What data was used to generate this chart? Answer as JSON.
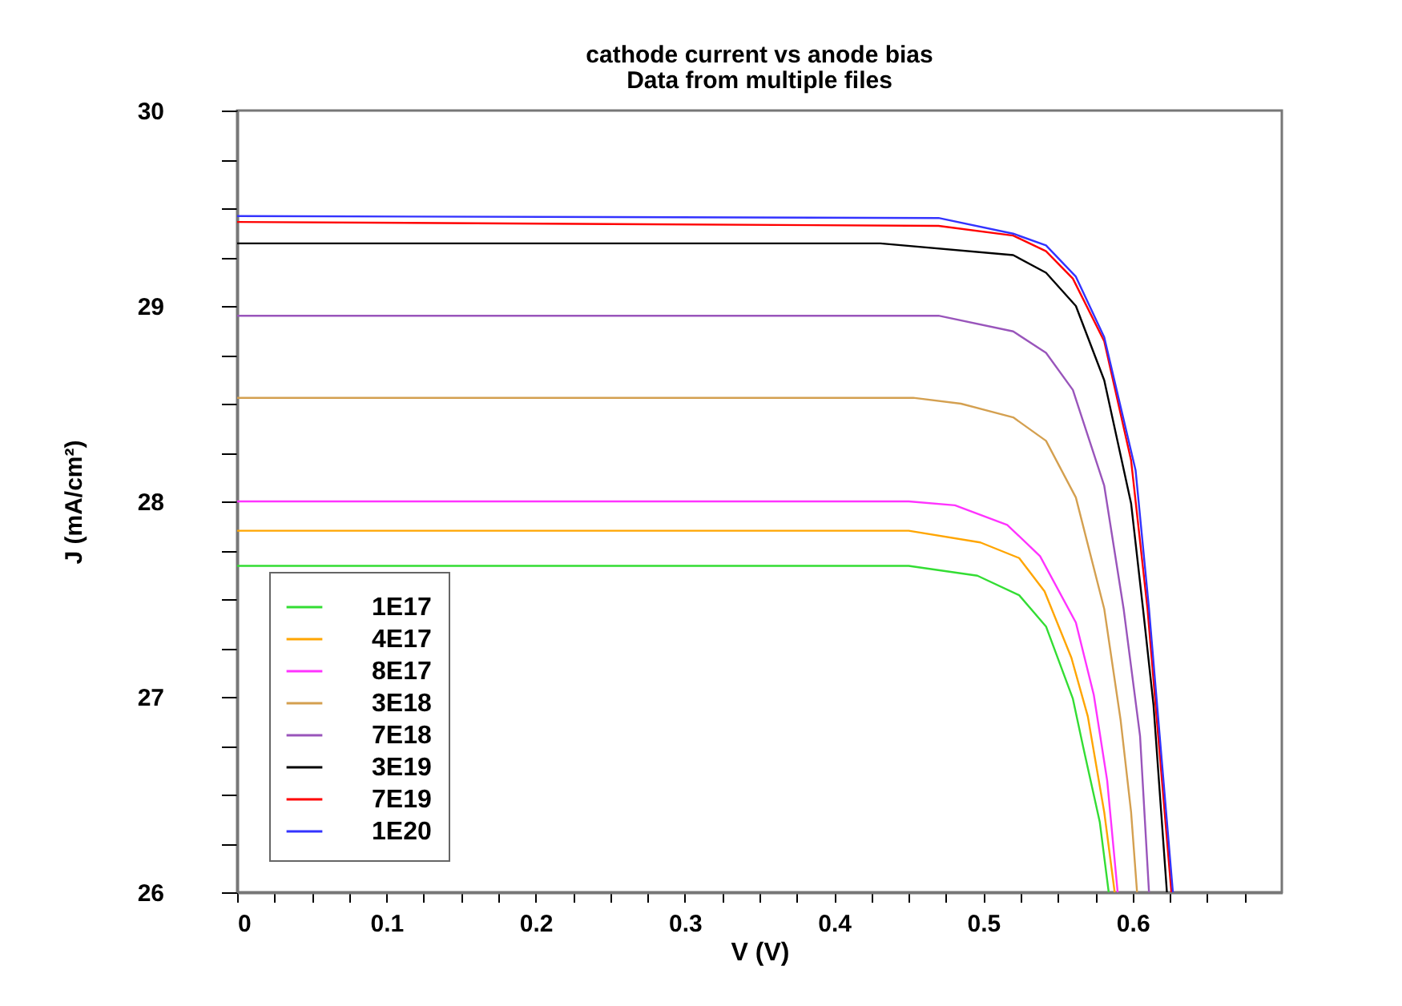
{
  "chart_data": {
    "type": "line",
    "title": "cathode current vs anode bias",
    "subtitle": "Data from multiple files",
    "xlabel": "V (V)",
    "ylabel": "J (mA/cm²)",
    "xlim": [
      0,
      0.7
    ],
    "ylim": [
      26,
      30
    ],
    "xticks": [
      0,
      {
        "value": 0.025,
        "label": null
      },
      {
        "value": 0.05,
        "label": null
      },
      {
        "value": 0.075,
        "label": null
      },
      0.1,
      {
        "value": 0.125,
        "label": null
      },
      {
        "value": 0.15,
        "label": null
      },
      {
        "value": 0.175,
        "label": null
      },
      0.2,
      {
        "value": 0.225,
        "label": null
      },
      {
        "value": 0.25,
        "label": null
      },
      {
        "value": 0.275,
        "label": null
      },
      0.3,
      {
        "value": 0.325,
        "label": null
      },
      {
        "value": 0.35,
        "label": null
      },
      {
        "value": 0.375,
        "label": null
      },
      0.4,
      {
        "value": 0.425,
        "label": null
      },
      {
        "value": 0.45,
        "label": null
      },
      {
        "value": 0.475,
        "label": null
      },
      0.5,
      {
        "value": 0.525,
        "label": null
      },
      {
        "value": 0.55,
        "label": null
      },
      {
        "value": 0.575,
        "label": null
      },
      0.6,
      {
        "value": 0.625,
        "label": null
      },
      {
        "value": 0.65,
        "label": null
      },
      {
        "value": 0.675,
        "label": null
      }
    ],
    "yticks": [
      26,
      {
        "value": 26.25,
        "label": null
      },
      {
        "value": 26.5,
        "label": null
      },
      {
        "value": 26.75,
        "label": null
      },
      27,
      {
        "value": 27.25,
        "label": null
      },
      {
        "value": 27.5,
        "label": null
      },
      {
        "value": 27.75,
        "label": null
      },
      28,
      {
        "value": 28.25,
        "label": null
      },
      {
        "value": 28.5,
        "label": null
      },
      {
        "value": 28.75,
        "label": null
      },
      29,
      {
        "value": 29.25,
        "label": null
      },
      {
        "value": 29.5,
        "label": null
      },
      {
        "value": 29.75,
        "label": null
      },
      30
    ],
    "grid": false,
    "legend": "bottom left",
    "marker": "none",
    "line_style": "solid",
    "series": [
      {
        "name": "1E17",
        "color": "#33dd33",
        "x": [
          0,
          0.45,
          0.496,
          0.524,
          0.542,
          0.56,
          0.567,
          0.578,
          0.584
        ],
        "values": [
          27.67,
          27.67,
          27.62,
          27.52,
          27.36,
          26.99,
          26.74,
          26.36,
          26.0
        ]
      },
      {
        "name": "4E17",
        "color": "#ffa500",
        "x": [
          0,
          0.45,
          0.498,
          0.524,
          0.541,
          0.559,
          0.57,
          0.581,
          0.588
        ],
        "values": [
          27.85,
          27.85,
          27.79,
          27.71,
          27.54,
          27.2,
          26.9,
          26.41,
          26.0
        ]
      },
      {
        "name": "8E17",
        "color": "#ff33ff",
        "x": [
          0,
          0.45,
          0.481,
          0.516,
          0.538,
          0.562,
          0.574,
          0.583,
          0.59
        ],
        "values": [
          28.0,
          28.0,
          27.98,
          27.88,
          27.72,
          27.38,
          27.01,
          26.57,
          26.0
        ]
      },
      {
        "name": "3E18",
        "color": "#d4a050",
        "x": [
          0,
          0.453,
          0.485,
          0.52,
          0.542,
          0.562,
          0.581,
          0.592,
          0.599,
          0.603
        ],
        "values": [
          28.53,
          28.53,
          28.5,
          28.43,
          28.31,
          28.02,
          27.45,
          26.88,
          26.41,
          26.0
        ]
      },
      {
        "name": "7E18",
        "color": "#9955bb",
        "x": [
          0,
          0.47,
          0.52,
          0.542,
          0.56,
          0.581,
          0.594,
          0.605,
          0.611
        ],
        "values": [
          28.95,
          28.95,
          28.87,
          28.76,
          28.57,
          28.08,
          27.45,
          26.8,
          26.0
        ]
      },
      {
        "name": "3E19",
        "color": "#000000",
        "x": [
          0,
          0.431,
          0.52,
          0.542,
          0.562,
          0.581,
          0.599,
          0.607,
          0.614,
          0.623
        ],
        "values": [
          29.32,
          29.32,
          29.26,
          29.17,
          29.0,
          28.62,
          27.99,
          27.45,
          26.96,
          26.0
        ]
      },
      {
        "name": "7E19",
        "color": "#ff0000",
        "x": [
          0,
          0.47,
          0.52,
          0.542,
          0.56,
          0.581,
          0.599,
          0.61,
          0.626
        ],
        "values": [
          29.43,
          29.41,
          29.36,
          29.28,
          29.14,
          28.82,
          28.21,
          27.45,
          26.0
        ]
      },
      {
        "name": "1E20",
        "color": "#3333ff",
        "x": [
          0,
          0.47,
          0.52,
          0.542,
          0.562,
          0.581,
          0.602,
          0.611,
          0.627
        ],
        "values": [
          29.46,
          29.45,
          29.37,
          29.31,
          29.15,
          28.84,
          28.16,
          27.45,
          26.0
        ]
      }
    ]
  }
}
